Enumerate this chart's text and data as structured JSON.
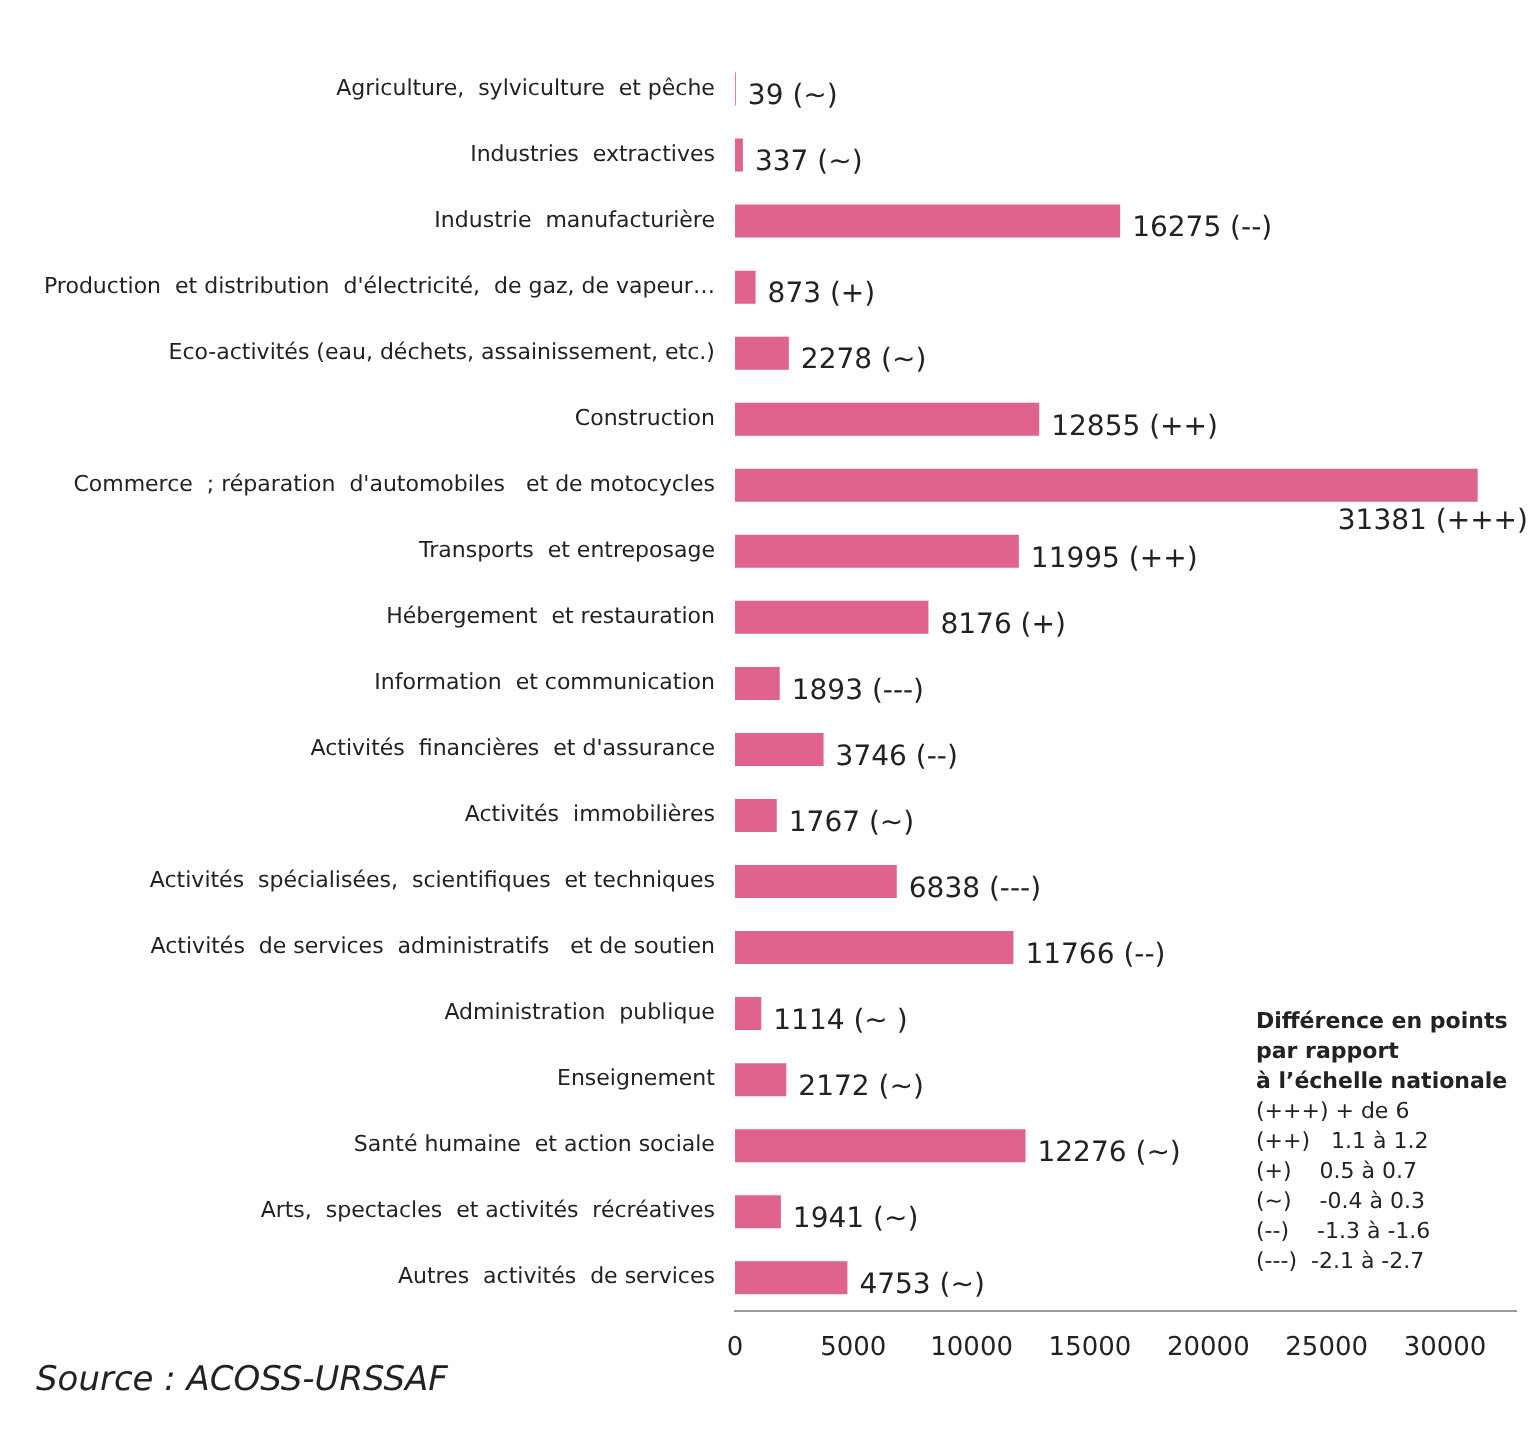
{
  "chart_data": {
    "type": "bar",
    "orientation": "horizontal",
    "categories": [
      "Agriculture,  sylviculture  et pêche",
      "Industries  extractives",
      "Industrie  manufacturière",
      "Production  et distribution  d'électricité,  de gaz, de vapeur…",
      "Eco-activités (eau, déchets, assainissement, etc.)",
      "Construction",
      "Commerce  ; réparation  d'automobiles   et de motocycles",
      "Transports  et entreposage",
      "Hébergement  et restauration",
      "Information  et communication",
      "Activités  financières  et d'assurance",
      "Activités  immobilières",
      "Activités  spécialisées,  scientifiques  et techniques",
      "Activités  de services  administratifs   et de soutien",
      "Administration  publique",
      "Enseignement",
      "Santé humaine  et action sociale",
      "Arts,  spectacles  et activités  récréatives",
      "Autres  activités  de services"
    ],
    "values": [
      39,
      337,
      16275,
      873,
      2278,
      12855,
      31381,
      11995,
      8176,
      1893,
      3746,
      1767,
      6838,
      11766,
      1114,
      2172,
      12276,
      1941,
      4753
    ],
    "value_labels": [
      "39 (~)",
      "337 (~)",
      "16275 (--)",
      "873 (+)",
      "2278 (~)",
      "12855 (++)",
      "31381 (+++)",
      "11995 (++)",
      "8176 (+)",
      "1893 (---)",
      "3746 (--)",
      "1767 (~)",
      "6838 (---)",
      "11766 (--)",
      "1114 (~ )",
      "2172 (~)",
      "12276 (~)",
      "1941 (~)",
      "4753 (~)"
    ],
    "color": "#e0628f",
    "xlim": [
      0,
      33000
    ],
    "xticks": [
      0,
      5000,
      10000,
      15000,
      20000,
      25000,
      30000
    ],
    "grid": false,
    "legend": false,
    "annotations": [
      "Source : ACOSS-URSSAF",
      "Différence en points",
      "par rapport",
      "à l’échelle nationale",
      "(+++) + de 6",
      "(++)   1.1 à 1.2",
      "(+)    0.5 à 0.7",
      "(~)    -0.4 à 0.3",
      "(--)    -1.3 à -1.6",
      "(---)  -2.1 à -2.7"
    ]
  }
}
